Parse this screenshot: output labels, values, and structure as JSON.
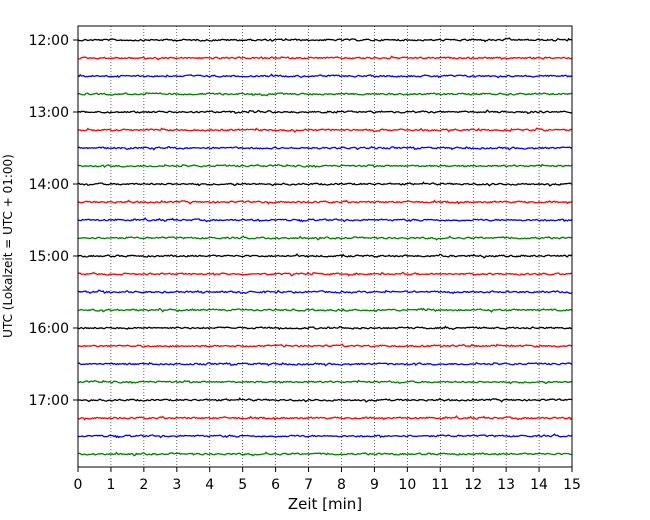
{
  "chart_data": {
    "type": "line",
    "title": "",
    "xlabel": "Zeit  [min]",
    "ylabel": "UTC (Lokalzeit = UTC + 01:00)",
    "xlim": [
      0,
      15
    ],
    "x_ticks": [
      "0",
      "1",
      "2",
      "3",
      "4",
      "5",
      "6",
      "7",
      "8",
      "9",
      "10",
      "11",
      "12",
      "13",
      "14",
      "15"
    ],
    "y_ticks": [
      "12:00",
      "13:00",
      "14:00",
      "15:00",
      "16:00",
      "17:00"
    ],
    "trace_interval_minutes": 15,
    "trace_count": 24,
    "trace_colors": [
      "#000000",
      "#ff0000",
      "#0000ff",
      "#007f00"
    ],
    "grid": "vertical dotted lines at each minute",
    "series": [
      {
        "start": "12:00",
        "color": "#000000"
      },
      {
        "start": "12:15",
        "color": "#ff0000"
      },
      {
        "start": "12:30",
        "color": "#0000ff"
      },
      {
        "start": "12:45",
        "color": "#007f00"
      },
      {
        "start": "13:00",
        "color": "#000000"
      },
      {
        "start": "13:15",
        "color": "#ff0000"
      },
      {
        "start": "13:30",
        "color": "#0000ff"
      },
      {
        "start": "13:45",
        "color": "#007f00"
      },
      {
        "start": "14:00",
        "color": "#000000"
      },
      {
        "start": "14:15",
        "color": "#ff0000"
      },
      {
        "start": "14:30",
        "color": "#0000ff"
      },
      {
        "start": "14:45",
        "color": "#007f00"
      },
      {
        "start": "15:00",
        "color": "#000000"
      },
      {
        "start": "15:15",
        "color": "#ff0000"
      },
      {
        "start": "15:30",
        "color": "#0000ff"
      },
      {
        "start": "15:45",
        "color": "#007f00"
      },
      {
        "start": "16:00",
        "color": "#000000"
      },
      {
        "start": "16:15",
        "color": "#ff0000"
      },
      {
        "start": "16:30",
        "color": "#0000ff"
      },
      {
        "start": "16:45",
        "color": "#007f00"
      },
      {
        "start": "17:00",
        "color": "#000000"
      },
      {
        "start": "17:15",
        "color": "#ff0000"
      },
      {
        "start": "17:30",
        "color": "#0000ff"
      },
      {
        "start": "17:45",
        "color": "#007f00"
      }
    ]
  }
}
